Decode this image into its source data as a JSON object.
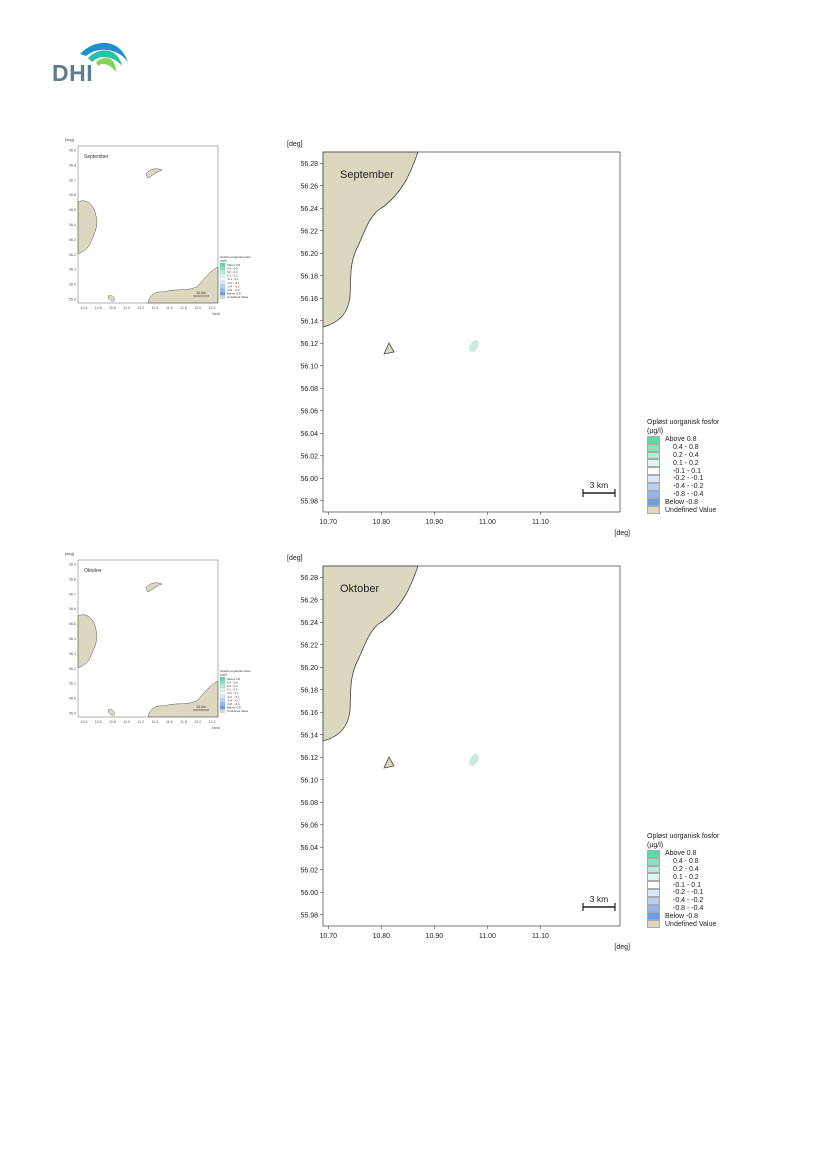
{
  "logo": {
    "text": "DHI"
  },
  "axis": {
    "unit": "[deg]"
  },
  "main_map": {
    "y_ticks": [
      "56.28",
      "56.26",
      "56.24",
      "56.22",
      "56.20",
      "56.18",
      "56.16",
      "56.14",
      "56.12",
      "56.10",
      "56.08",
      "56.06",
      "56.04",
      "56.02",
      "56.00",
      "55.98"
    ],
    "x_ticks": [
      "10.70",
      "10.80",
      "10.90",
      "11.00",
      "11.10"
    ],
    "scale_bar": "3 km"
  },
  "mini_map": {
    "y_ticks": [
      "56.9",
      "56.8",
      "56.7",
      "56.6",
      "56.5",
      "56.4",
      "56.3",
      "56.2",
      "56.1",
      "56.0",
      "55.9"
    ],
    "x_ticks": [
      "10.4",
      "10.6",
      "10.8",
      "11.0",
      "11.2",
      "11.4",
      "11.6",
      "11.8",
      "12.0",
      "12.2"
    ],
    "scale_bar": "10 km"
  },
  "panels": [
    {
      "label": "September"
    },
    {
      "label": "Oktober"
    }
  ],
  "legend": {
    "title_line1": "Opløst uorganisk fosfor",
    "title_line2": "(µg/l)",
    "items": [
      {
        "label": "Above  0.8",
        "color": "#5dd9a3"
      },
      {
        "label": "0.4 -  0.8",
        "color": "#88e3bd"
      },
      {
        "label": "0.2 -  0.4",
        "color": "#b3edd5"
      },
      {
        "label": "0.1 -  0.2",
        "color": "#dcf7eb"
      },
      {
        "label": "-0.1 -  0.1",
        "color": "#ffffff"
      },
      {
        "label": "-0.2 - -0.1",
        "color": "#dbe8fa"
      },
      {
        "label": "-0.4 - -0.2",
        "color": "#b6d0f4"
      },
      {
        "label": "-0.8 - -0.4",
        "color": "#90b7ee"
      },
      {
        "label": "Below -0.8",
        "color": "#6a9ee8"
      },
      {
        "label": "Undefined Value",
        "color": "#dcd8c0"
      }
    ]
  },
  "colors": {
    "land": "#dcd8c0",
    "plume": "#c9ede0",
    "frame": "#555555"
  }
}
